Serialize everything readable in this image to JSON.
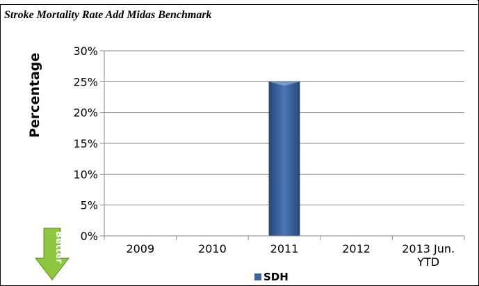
{
  "chart_data": {
    "type": "bar",
    "title": "Stroke Mortality Rate Add Midas Benchmark",
    "ylabel": "Percentage",
    "xlabel": "",
    "categories": [
      "2009",
      "2010",
      "2011",
      "2012",
      "2013 Jun. YTD"
    ],
    "category_lines": [
      [
        "2009"
      ],
      [
        "2010"
      ],
      [
        "2011"
      ],
      [
        "2012"
      ],
      [
        "2013 Jun.",
        "YTD"
      ]
    ],
    "series": [
      {
        "name": "SDH",
        "values": [
          0,
          0,
          25,
          0,
          0
        ],
        "color": "#3b64a0"
      }
    ],
    "ylim": [
      0,
      30
    ],
    "yticks": [
      0,
      5,
      10,
      15,
      20,
      25,
      30
    ],
    "ytick_labels": [
      "0%",
      "5%",
      "10%",
      "15%",
      "20%",
      "25%",
      "30%"
    ],
    "grid": true,
    "legend_position": "bottom"
  },
  "better_label": "Better",
  "better_arrow_color": "#8dc63f"
}
